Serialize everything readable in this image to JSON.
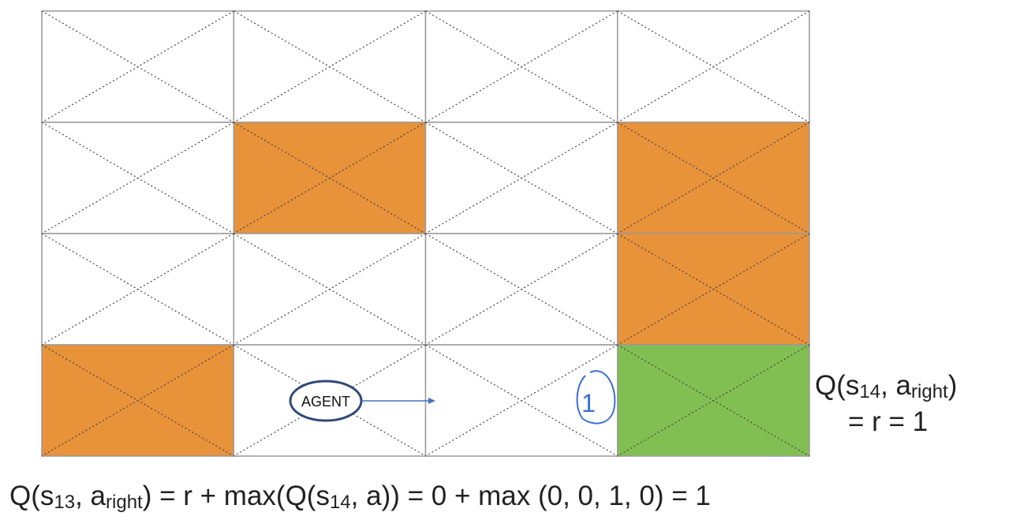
{
  "agent_label": "AGENT",
  "annotation": "1",
  "right_equation": {
    "line1": [
      "Q(s",
      "14",
      ", a",
      "right",
      ")"
    ],
    "line2": "= r = 1"
  },
  "bottom_equation": [
    "Q(s",
    "13",
    ", a",
    "right",
    ") = r + max(Q(s",
    "14",
    ", a)) = 0 + max (0, 0, 1, 0) = 1"
  ]
}
